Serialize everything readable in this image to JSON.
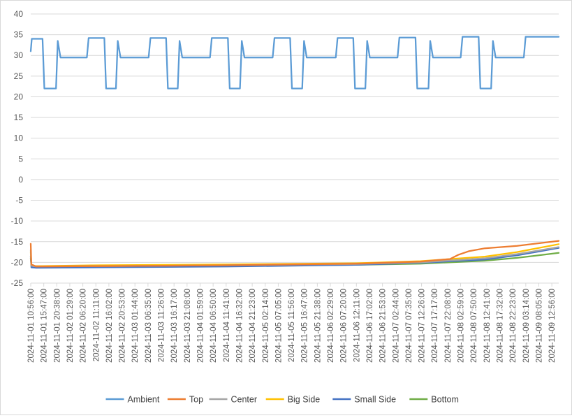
{
  "chart_data": {
    "type": "line",
    "title": "",
    "xlabel": "",
    "ylabel": "",
    "ylim": [
      -25,
      40
    ],
    "yticks": [
      -25,
      -20,
      -15,
      -10,
      -5,
      0,
      5,
      10,
      15,
      20,
      25,
      30,
      35,
      40
    ],
    "grid": "horizontal",
    "legend": "bottom",
    "x_start": "2024-11-01 10:56:00",
    "x_end": "2024-11-09 15:30:00",
    "x_tick_labels": [
      "2024-11-01 10:56:00",
      "2024-11-01 15:47:00",
      "2024-11-01 20:38:00",
      "2024-11-02 01:29:00",
      "2024-11-02 06:20:00",
      "2024-11-02 11:11:00",
      "2024-11-02 16:02:00",
      "2024-11-02 20:53:00",
      "2024-11-03 01:44:00",
      "2024-11-03 06:35:00",
      "2024-11-03 11:26:00",
      "2024-11-03 16:17:00",
      "2024-11-03 21:08:00",
      "2024-11-04 01:59:00",
      "2024-11-04 06:50:00",
      "2024-11-04 11:41:00",
      "2024-11-04 16:32:00",
      "2024-11-04 21:23:00",
      "2024-11-05 02:14:00",
      "2024-11-05 07:05:00",
      "2024-11-05 11:56:00",
      "2024-11-05 16:47:00",
      "2024-11-05 21:38:00",
      "2024-11-06 02:29:00",
      "2024-11-06 07:20:00",
      "2024-11-06 12:11:00",
      "2024-11-06 17:02:00",
      "2024-11-06 21:53:00",
      "2024-11-07 02:44:00",
      "2024-11-07 07:35:00",
      "2024-11-07 12:26:00",
      "2024-11-07 17:17:00",
      "2024-11-07 22:08:00",
      "2024-11-08 02:59:00",
      "2024-11-08 07:50:00",
      "2024-11-08 12:41:00",
      "2024-11-08 17:32:00",
      "2024-11-08 22:23:00",
      "2024-11-09 03:14:00",
      "2024-11-09 08:05:00",
      "2024-11-09 12:56:00"
    ],
    "series": [
      {
        "name": "Ambient",
        "color": "#5b9bd5",
        "x": [
          "2024-11-01 10:56:00",
          "2024-11-01 11:20:00",
          "2024-11-01 15:20:00",
          "2024-11-01 16:00:00",
          "2024-11-01 20:20:00",
          "2024-11-01 21:00:00",
          "2024-11-01 22:00:00",
          "2024-11-02 07:50:00",
          "2024-11-02 08:30:00",
          "2024-11-02 14:20:00",
          "2024-11-02 15:00:00",
          "2024-11-02 18:40:00",
          "2024-11-02 19:20:00",
          "2024-11-02 20:20:00",
          "2024-11-03 06:50:00",
          "2024-11-03 07:30:00",
          "2024-11-03 13:20:00",
          "2024-11-03 14:00:00",
          "2024-11-03 17:40:00",
          "2024-11-03 18:20:00",
          "2024-11-03 19:20:00",
          "2024-11-04 05:40:00",
          "2024-11-04 06:20:00",
          "2024-11-04 12:20:00",
          "2024-11-04 13:00:00",
          "2024-11-04 16:50:00",
          "2024-11-04 17:30:00",
          "2024-11-04 18:30:00",
          "2024-11-05 05:00:00",
          "2024-11-05 05:40:00",
          "2024-11-05 11:30:00",
          "2024-11-05 12:10:00",
          "2024-11-05 16:00:00",
          "2024-11-05 16:40:00",
          "2024-11-05 17:40:00",
          "2024-11-06 04:30:00",
          "2024-11-06 05:10:00",
          "2024-11-06 11:00:00",
          "2024-11-06 11:40:00",
          "2024-11-06 15:30:00",
          "2024-11-06 16:10:00",
          "2024-11-06 17:10:00",
          "2024-11-07 03:30:00",
          "2024-11-07 04:10:00",
          "2024-11-07 10:10:00",
          "2024-11-07 10:50:00",
          "2024-11-07 15:00:00",
          "2024-11-07 15:40:00",
          "2024-11-07 16:40:00",
          "2024-11-08 03:00:00",
          "2024-11-08 03:40:00",
          "2024-11-08 09:40:00",
          "2024-11-08 10:20:00",
          "2024-11-08 14:20:00",
          "2024-11-08 15:00:00",
          "2024-11-08 16:00:00",
          "2024-11-09 02:30:00",
          "2024-11-09 03:10:00",
          "2024-11-09 15:30:00"
        ],
        "values": [
          31,
          34,
          34,
          22,
          22,
          33.5,
          29.5,
          29.5,
          34.2,
          34.2,
          22,
          22,
          33.5,
          29.5,
          29.5,
          34.2,
          34.2,
          22,
          22,
          33.5,
          29.5,
          29.5,
          34.2,
          34.2,
          22,
          22,
          33.5,
          29.5,
          29.5,
          34.2,
          34.2,
          22,
          22,
          33.5,
          29.5,
          29.5,
          34.2,
          34.2,
          22,
          22,
          33.5,
          29.5,
          29.5,
          34.3,
          34.3,
          22,
          22,
          33.5,
          29.5,
          29.5,
          34.5,
          34.5,
          22,
          22,
          33.5,
          29.5,
          29.5,
          34.5,
          34.5
        ]
      },
      {
        "name": "Top",
        "color": "#ed7d31",
        "x": [
          "2024-11-01 10:56:00",
          "2024-11-01 11:10:00",
          "2024-11-01 13:00:00",
          "2024-11-02 12:00:00",
          "2024-11-04 12:00:00",
          "2024-11-06 12:00:00",
          "2024-11-07 12:00:00",
          "2024-11-07 23:00:00",
          "2024-11-08 02:00:00",
          "2024-11-08 06:00:00",
          "2024-11-08 12:00:00",
          "2024-11-09 00:00:00",
          "2024-11-09 15:30:00"
        ],
        "values": [
          -15.5,
          -20.5,
          -21,
          -20.9,
          -20.7,
          -20.3,
          -19.8,
          -19.2,
          -18.2,
          -17.3,
          -16.6,
          -16,
          -14.8
        ]
      },
      {
        "name": "Center",
        "color": "#a5a5a5",
        "x": [
          "2024-11-01 10:56:00",
          "2024-11-01 11:10:00",
          "2024-11-01 13:00:00",
          "2024-11-02 12:00:00",
          "2024-11-04 12:00:00",
          "2024-11-06 12:00:00",
          "2024-11-07 12:00:00",
          "2024-11-08 12:00:00",
          "2024-11-09 00:00:00",
          "2024-11-09 15:30:00"
        ],
        "values": [
          -17,
          -20.8,
          -21,
          -20.9,
          -20.7,
          -20.4,
          -20,
          -19,
          -18,
          -16.3
        ]
      },
      {
        "name": "Big Side",
        "color": "#ffc000",
        "x": [
          "2024-11-01 10:56:00",
          "2024-11-01 11:10:00",
          "2024-11-01 13:00:00",
          "2024-11-02 12:00:00",
          "2024-11-04 12:00:00",
          "2024-11-06 12:00:00",
          "2024-11-07 12:00:00",
          "2024-11-08 12:00:00",
          "2024-11-09 00:00:00",
          "2024-11-09 15:30:00"
        ],
        "values": [
          -17.5,
          -20.8,
          -20.9,
          -20.7,
          -20.5,
          -20.2,
          -19.7,
          -18.6,
          -17.5,
          -15.6
        ]
      },
      {
        "name": "Small Side",
        "color": "#4472c4",
        "x": [
          "2024-11-01 10:56:00",
          "2024-11-01 11:10:00",
          "2024-11-01 13:00:00",
          "2024-11-02 12:00:00",
          "2024-11-04 12:00:00",
          "2024-11-06 12:00:00",
          "2024-11-07 12:00:00",
          "2024-11-08 12:00:00",
          "2024-11-09 00:00:00",
          "2024-11-09 15:30:00"
        ],
        "values": [
          -18.5,
          -21.2,
          -21.3,
          -21.2,
          -21,
          -20.6,
          -20.1,
          -19.3,
          -18.3,
          -16.5
        ]
      },
      {
        "name": "Bottom",
        "color": "#70ad47",
        "x": [
          "2024-11-01 10:56:00",
          "2024-11-01 11:10:00",
          "2024-11-01 13:00:00",
          "2024-11-02 12:00:00",
          "2024-11-04 12:00:00",
          "2024-11-06 12:00:00",
          "2024-11-07 12:00:00",
          "2024-11-08 12:00:00",
          "2024-11-09 00:00:00",
          "2024-11-09 15:30:00"
        ],
        "values": [
          -19,
          -20.8,
          -20.9,
          -20.9,
          -20.8,
          -20.6,
          -20.3,
          -19.6,
          -18.9,
          -17.7
        ]
      }
    ]
  }
}
